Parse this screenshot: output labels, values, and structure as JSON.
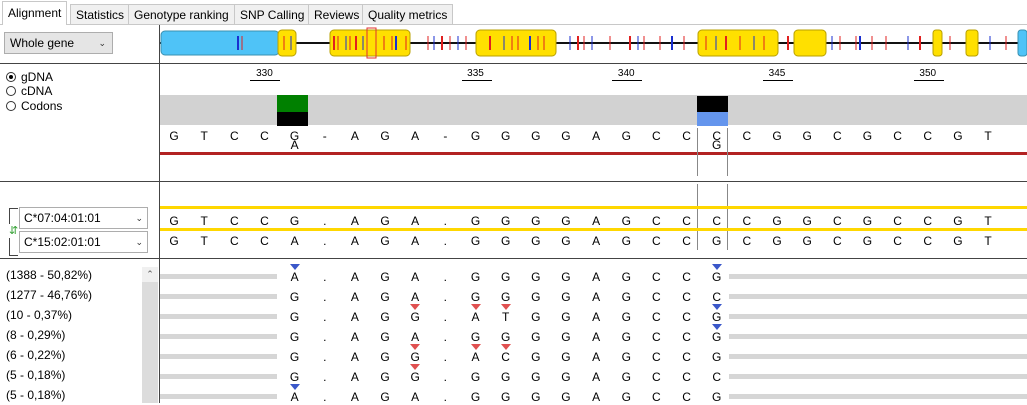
{
  "tabs": [
    "Alignment",
    "Statistics",
    "Genotype ranking",
    "SNP Calling",
    "Reviews",
    "Quality metrics"
  ],
  "active_tab": "Alignment",
  "region_select": {
    "value": "Whole gene"
  },
  "view_modes": [
    {
      "label": "gDNA",
      "selected": true
    },
    {
      "label": "cDNA",
      "selected": false
    },
    {
      "label": "Codons",
      "selected": false
    }
  ],
  "ruler": [
    "330",
    "335",
    "340",
    "345",
    "350"
  ],
  "reference": {
    "chars": [
      "G",
      "T",
      "C",
      "C",
      "G",
      "-",
      "A",
      "G",
      "A",
      "-",
      "G",
      "G",
      "G",
      "G",
      "A",
      "G",
      "C",
      "C",
      "C",
      "C",
      "G",
      "G",
      "C",
      "G",
      "C",
      "C",
      "G",
      "T"
    ],
    "second_line": {
      "4": "A",
      "18": "G"
    }
  },
  "alleles": [
    {
      "name": "C*07:04:01:01",
      "chars": [
        "G",
        "T",
        "C",
        "C",
        "G",
        ".",
        "A",
        "G",
        "A",
        ".",
        "G",
        "G",
        "G",
        "G",
        "A",
        "G",
        "C",
        "C",
        "C",
        "C",
        "G",
        "G",
        "C",
        "G",
        "C",
        "C",
        "G",
        "T"
      ]
    },
    {
      "name": "C*15:02:01:01",
      "chars": [
        "G",
        "T",
        "C",
        "C",
        "A",
        ".",
        "A",
        "G",
        "A",
        ".",
        "G",
        "G",
        "G",
        "G",
        "A",
        "G",
        "C",
        "C",
        "G",
        "C",
        "G",
        "G",
        "C",
        "G",
        "C",
        "C",
        "G",
        "T"
      ]
    }
  ],
  "reads": [
    {
      "label": "(1388 - 50,82%)",
      "chars": [
        "A",
        ".",
        "A",
        "G",
        "A",
        ".",
        "G",
        "G",
        "G",
        "G",
        "A",
        "G",
        "C",
        "C",
        "G"
      ]
    },
    {
      "label": "(1277 - 46,76%)",
      "chars": [
        "G",
        ".",
        "A",
        "G",
        "A",
        ".",
        "G",
        "G",
        "G",
        "G",
        "A",
        "G",
        "C",
        "C",
        "C"
      ]
    },
    {
      "label": "(10 - 0,37%)",
      "chars": [
        "G",
        ".",
        "A",
        "G",
        "G",
        ".",
        "A",
        "T",
        "G",
        "G",
        "A",
        "G",
        "C",
        "C",
        "G"
      ]
    },
    {
      "label": "(8 - 0,29%)",
      "chars": [
        "G",
        ".",
        "A",
        "G",
        "A",
        ".",
        "G",
        "G",
        "G",
        "G",
        "A",
        "G",
        "C",
        "C",
        "G"
      ]
    },
    {
      "label": "(6 - 0,22%)",
      "chars": [
        "G",
        ".",
        "A",
        "G",
        "G",
        ".",
        "A",
        "C",
        "G",
        "G",
        "A",
        "G",
        "C",
        "C",
        "G"
      ]
    },
    {
      "label": "(5 - 0,18%)",
      "chars": [
        "G",
        ".",
        "A",
        "G",
        "G",
        ".",
        "G",
        "G",
        "G",
        "G",
        "A",
        "G",
        "C",
        "C",
        "C"
      ]
    },
    {
      "label": "(5 - 0,18%)",
      "chars": [
        "A",
        ".",
        "A",
        "G",
        "A",
        ".",
        "G",
        "G",
        "G",
        "G",
        "A",
        "G",
        "C",
        "C",
        "G"
      ]
    }
  ],
  "colors": {
    "exon": "#ffe000",
    "utr": "#4fc3f7",
    "ref_line": "#b22222",
    "allele_line": "#ffd700",
    "match_green": "#008000",
    "mismatch_blue": "#6495ed"
  },
  "icons": {
    "swap": "swap-arrows-icon",
    "chevron": "chevron-down-icon",
    "scroll_up": "scroll-up-icon"
  }
}
